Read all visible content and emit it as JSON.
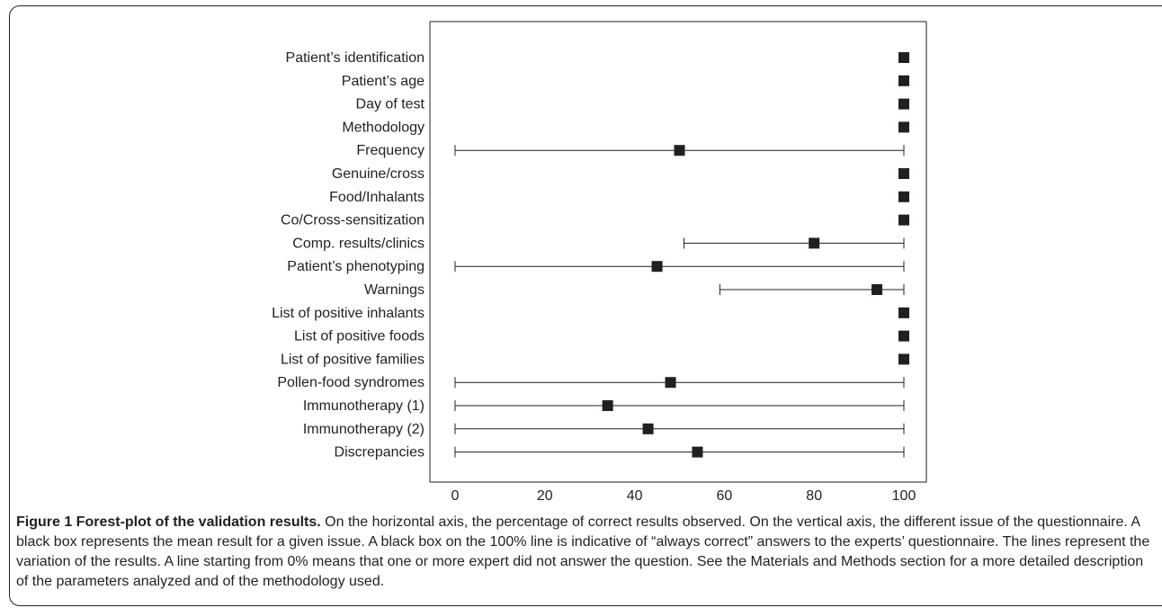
{
  "chart_data": {
    "type": "forest",
    "categories": [
      "Patient’s identification",
      "Patient’s age",
      "Day of test",
      "Methodology",
      "Frequency",
      "Genuine/cross",
      "Food/Inhalants",
      "Co/Cross-sensitization",
      "Comp. results/clinics",
      "Patient’s phenotyping",
      "Warnings",
      "List of positive inhalants",
      "List of positive foods",
      "List of positive families",
      "Pollen-food syndromes",
      "Immunotherapy (1)",
      "Immunotherapy (2)",
      "Discrepancies"
    ],
    "mean": [
      100,
      100,
      100,
      100,
      50,
      100,
      100,
      100,
      80,
      45,
      94,
      100,
      100,
      100,
      48,
      34,
      43,
      54
    ],
    "low": [
      100,
      100,
      100,
      100,
      0,
      100,
      100,
      100,
      51,
      0,
      59,
      100,
      100,
      100,
      0,
      0,
      0,
      0
    ],
    "high": [
      100,
      100,
      100,
      100,
      100,
      100,
      100,
      100,
      100,
      100,
      100,
      100,
      100,
      100,
      100,
      100,
      100,
      100
    ],
    "x_ticks": [
      "0",
      "20",
      "40",
      "60",
      "80",
      "100"
    ],
    "xlim": [
      0,
      100
    ],
    "title": "",
    "xlabel": "",
    "ylabel": "",
    "grid": false,
    "legend": "none"
  },
  "caption": {
    "title": "Figure 1 Forest-plot of the validation results.",
    "text": " On the horizontal axis, the percentage of correct results observed. On the vertical axis, the different issue of the questionnaire. A black box represents the mean result for a given issue. A black box on the 100% line is indicative of “always correct” answers to the experts’ questionnaire. The lines represent the variation of the results. A line starting from 0% means that one or more expert did not answer the question. See the Materials and Methods section for a more detailed description of the parameters analyzed and of the methodology used."
  },
  "colors": {
    "ink": "#231f20"
  }
}
